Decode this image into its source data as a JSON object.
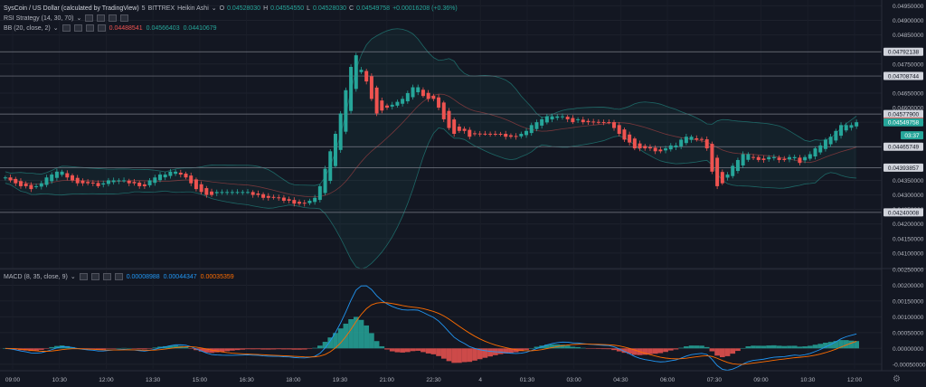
{
  "header": {
    "symbol": "SysCoin / US Dollar (calculated by TradingView)",
    "interval": "5",
    "exchange": "BITTREX",
    "chart_style": "Heikin Ashi",
    "o_label": "O",
    "o_value": "0.04528030",
    "h_label": "H",
    "h_value": "0.04554550",
    "l_label": "L",
    "l_value": "0.04528030",
    "c_label": "C",
    "c_value": "0.04549758",
    "change": "+0.00016208 (+0.36%)"
  },
  "indicators": {
    "rsi": {
      "label": "RSI Strategy (14, 30, 70)"
    },
    "bb": {
      "label": "BB (20, close, 2)",
      "v1": "0.04488541",
      "v2": "0.04566403",
      "v3": "0.04410679"
    },
    "macd": {
      "label": "MACD (8, 35, close, 9)",
      "v1": "0.00008988",
      "v2": "0.00044347",
      "v3": "0.00035359"
    }
  },
  "colors": {
    "background": "#131722",
    "up": "#26a69a",
    "down": "#ef5350",
    "bb_basis": "#ef5350",
    "bb_band": "#26a69a",
    "macd_line": "#2196f3",
    "signal_line": "#ff6d00",
    "hline": "#787b86"
  },
  "chart_data": [
    {
      "type": "candlestick",
      "style": "heikin-ashi",
      "ylim": [
        0.0405,
        0.0497
      ],
      "price_ticks": [
        "0.04950000",
        "0.04900000",
        "0.04850000",
        "0.04750000",
        "0.04650000",
        "0.04600000",
        "0.04550000",
        "0.04350000",
        "0.04300000",
        "0.04250000",
        "0.04200000",
        "0.04150000",
        "0.04100000"
      ],
      "x_ticks": [
        "09:00",
        "10:30",
        "12:00",
        "13:30",
        "15:00",
        "16:30",
        "18:00",
        "19:30",
        "21:00",
        "22:30",
        "4",
        "01:30",
        "03:00",
        "04:30",
        "06:00",
        "07:30",
        "09:00",
        "10:30",
        "12:00"
      ],
      "hlines": [
        {
          "value": 0.04792138,
          "label": "0.04792138",
          "color": "#26a69a"
        },
        {
          "value": 0.04708744,
          "label": "0.04708744",
          "color": "#26a69a"
        },
        {
          "value": 0.045779,
          "label": "0.04577900",
          "color": "#26a69a"
        },
        {
          "value": 0.04465749,
          "label": "0.04465749",
          "color": "#26a69a"
        },
        {
          "value": 0.04393857,
          "label": "0.04393857",
          "color": "#26a69a"
        },
        {
          "value": 0.04240008,
          "label": "0.04240008",
          "color": "#26a69a"
        }
      ],
      "price_labels": [
        {
          "value": 0.04552313,
          "label": "0.04552313",
          "color": "#ef5350"
        },
        {
          "value": 0.04549758,
          "label": "0.04549758",
          "color": "#26a69a"
        }
      ],
      "countdown": {
        "value": 0.04505,
        "label": "03:37"
      },
      "close": [
        0.0436,
        0.0435,
        0.0434,
        0.0433,
        0.0433,
        0.0432,
        0.0433,
        0.0434,
        0.0436,
        0.0437,
        0.0438,
        0.0438,
        0.0436,
        0.0435,
        0.0434,
        0.0434,
        0.0434,
        0.0434,
        0.0433,
        0.0434,
        0.0435,
        0.0435,
        0.0435,
        0.0435,
        0.0434,
        0.0434,
        0.0433,
        0.0433,
        0.0435,
        0.0436,
        0.0437,
        0.0437,
        0.0438,
        0.0438,
        0.0437,
        0.0436,
        0.0434,
        0.0432,
        0.0431,
        0.043,
        0.043,
        0.0431,
        0.0431,
        0.0431,
        0.0431,
        0.0431,
        0.0431,
        0.0431,
        0.043,
        0.043,
        0.0429,
        0.0429,
        0.0429,
        0.0429,
        0.0428,
        0.0428,
        0.0427,
        0.0427,
        0.0427,
        0.0428,
        0.0429,
        0.0433,
        0.0439,
        0.0445,
        0.0451,
        0.0458,
        0.0466,
        0.0474,
        0.0478,
        0.0473,
        0.0469,
        0.0463,
        0.0458,
        0.0459,
        0.046,
        0.0461,
        0.0462,
        0.0463,
        0.0465,
        0.0467,
        0.0467,
        0.0464,
        0.0463,
        0.0463,
        0.046,
        0.0456,
        0.0453,
        0.0451,
        0.0452,
        0.0452,
        0.045,
        0.0451,
        0.0451,
        0.0451,
        0.0451,
        0.0451,
        0.0451,
        0.045,
        0.045,
        0.045,
        0.0451,
        0.0452,
        0.0454,
        0.0455,
        0.0456,
        0.0457,
        0.0457,
        0.0457,
        0.0457,
        0.0456,
        0.0455,
        0.0456,
        0.0455,
        0.0455,
        0.0455,
        0.0455,
        0.0455,
        0.0455,
        0.0453,
        0.0451,
        0.0449,
        0.0448,
        0.0446,
        0.0446,
        0.0446,
        0.0446,
        0.0445,
        0.0445,
        0.0446,
        0.0447,
        0.0447,
        0.0449,
        0.045,
        0.045,
        0.0449,
        0.0449,
        0.0446,
        0.0438,
        0.0433,
        0.0434,
        0.0437,
        0.044,
        0.0442,
        0.0444,
        0.0444,
        0.0443,
        0.0442,
        0.0442,
        0.0443,
        0.0443,
        0.0442,
        0.0442,
        0.0443,
        0.0443,
        0.0441,
        0.0443,
        0.0444,
        0.0446,
        0.0447,
        0.0449,
        0.045,
        0.0452,
        0.0454,
        0.0454,
        0.0454,
        0.0455
      ]
    },
    {
      "type": "line",
      "name": "MACD",
      "ylim": [
        -0.00065,
        0.0025
      ],
      "y_ticks": [
        "0.00250000",
        "0.00200000",
        "0.00150000",
        "0.00100000",
        "0.00050000",
        "0.00000000",
        "-0.00050000"
      ]
    }
  ]
}
